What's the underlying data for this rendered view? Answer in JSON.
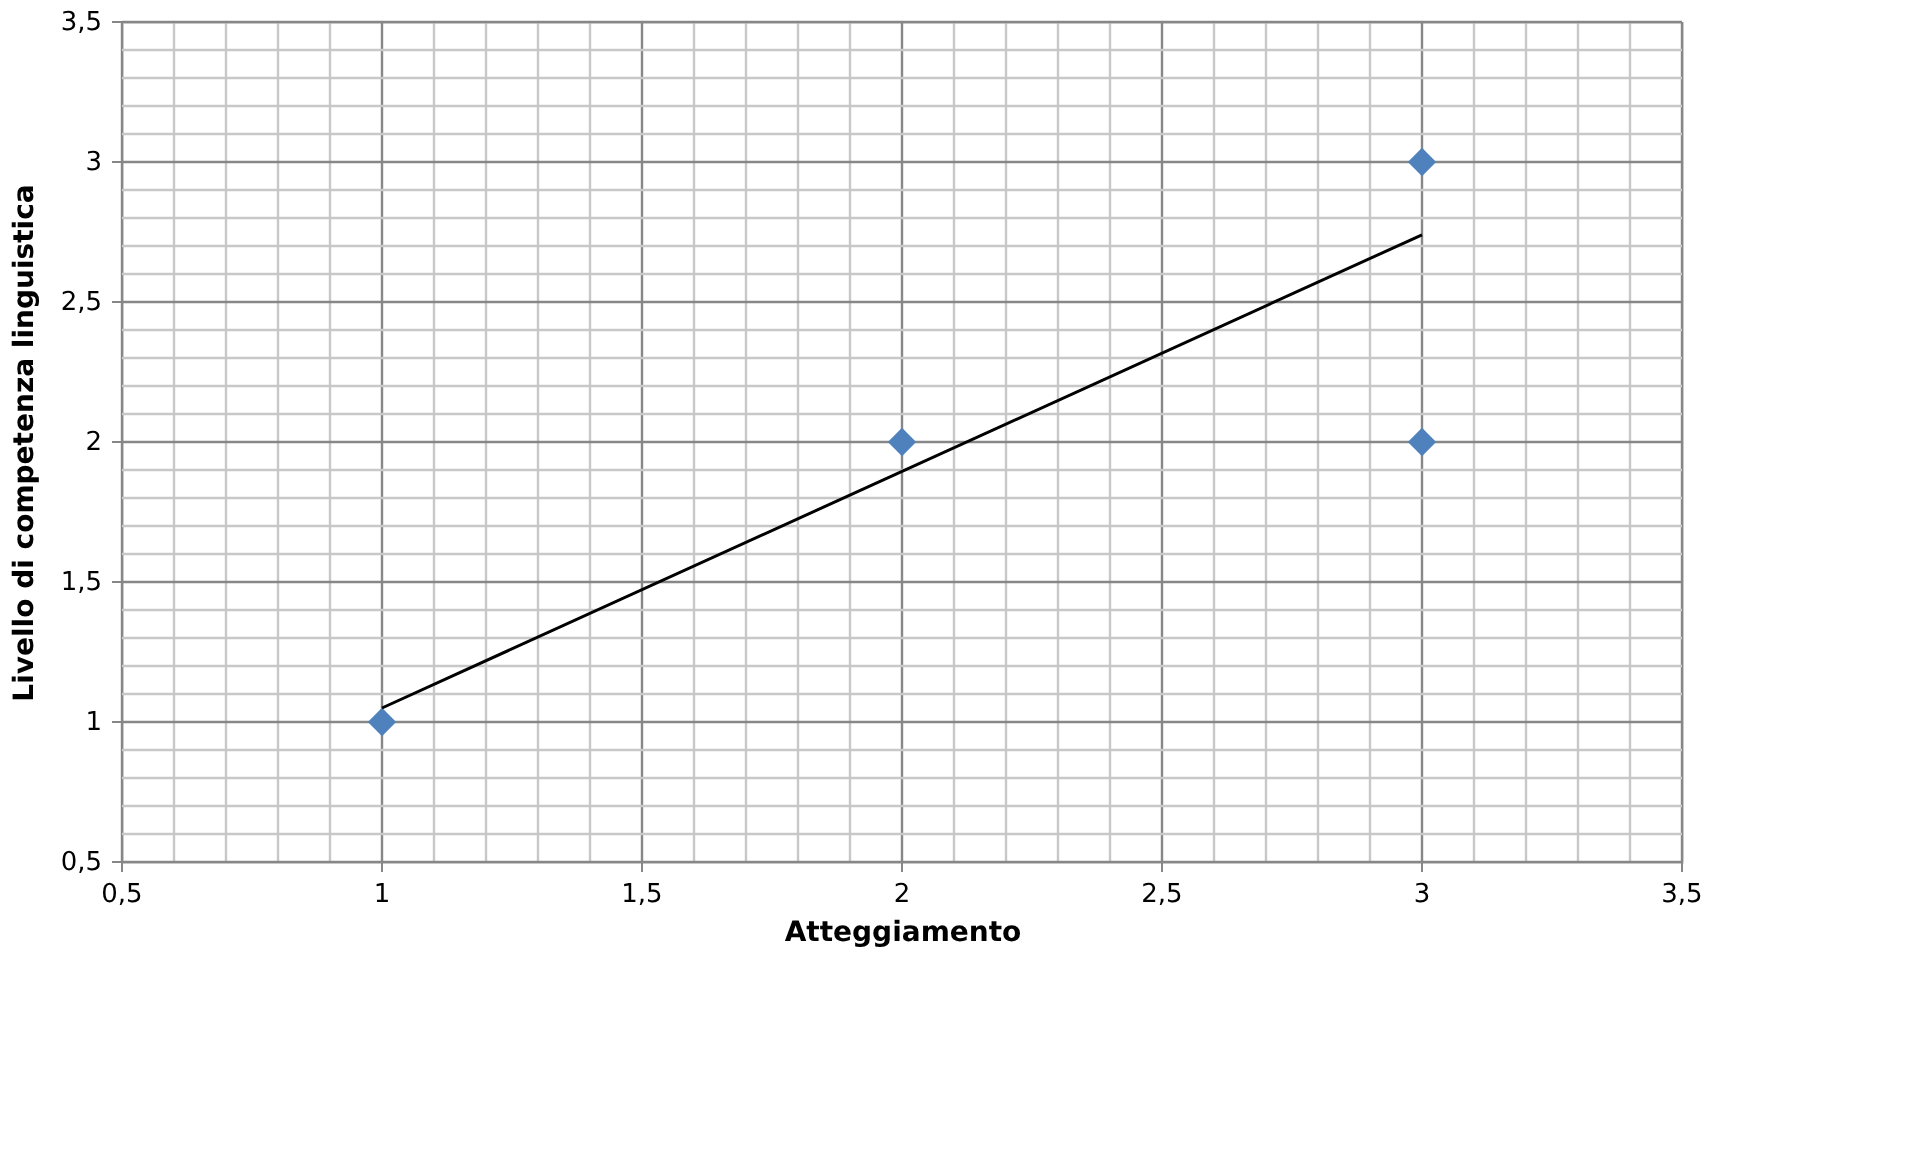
{
  "chart_data": {
    "type": "scatter",
    "xlabel": "Atteggiamento",
    "ylabel": "Livello di competenza  linguistica",
    "x": [
      1,
      2,
      3,
      3
    ],
    "series": [
      {
        "color": "#4f81bd",
        "marker": "diamond",
        "values": [
          1,
          2,
          3,
          2
        ]
      },
      {
        "type": "line",
        "color": "#000000",
        "marker": "none",
        "line_style": "solid",
        "x": [
          1,
          3
        ],
        "values": [
          1.05,
          2.74
        ]
      }
    ],
    "xlim": [
      0.5,
      3.5
    ],
    "ylim": [
      0.5,
      3.5
    ],
    "xticks": [
      {
        "value": 0.5,
        "label": "0,5"
      },
      {
        "value": 0.6,
        "label": null
      },
      {
        "value": 0.7,
        "label": null
      },
      {
        "value": 0.8,
        "label": null
      },
      {
        "value": 0.9,
        "label": null
      },
      1,
      {
        "value": 1.1,
        "label": null
      },
      {
        "value": 1.2,
        "label": null
      },
      {
        "value": 1.3,
        "label": null
      },
      {
        "value": 1.4,
        "label": null
      },
      {
        "value": 1.5,
        "label": "1,5"
      },
      {
        "value": 1.6,
        "label": null
      },
      {
        "value": 1.7,
        "label": null
      },
      {
        "value": 1.8,
        "label": null
      },
      {
        "value": 1.9,
        "label": null
      },
      2,
      {
        "value": 2.1,
        "label": null
      },
      {
        "value": 2.2,
        "label": null
      },
      {
        "value": 2.3,
        "label": null
      },
      {
        "value": 2.4,
        "label": null
      },
      {
        "value": 2.5,
        "label": "2,5"
      },
      {
        "value": 2.6,
        "label": null
      },
      {
        "value": 2.7,
        "label": null
      },
      {
        "value": 2.8,
        "label": null
      },
      {
        "value": 2.9,
        "label": null
      },
      3,
      {
        "value": 3.1,
        "label": null
      },
      {
        "value": 3.2,
        "label": null
      },
      {
        "value": 3.3,
        "label": null
      },
      {
        "value": 3.4,
        "label": null
      },
      {
        "value": 3.5,
        "label": "3,5"
      }
    ],
    "yticks": [
      {
        "value": 0.5,
        "label": "0,5"
      },
      {
        "value": 0.6,
        "label": null
      },
      {
        "value": 0.7,
        "label": null
      },
      {
        "value": 0.8,
        "label": null
      },
      {
        "value": 0.9,
        "label": null
      },
      1,
      {
        "value": 1.1,
        "label": null
      },
      {
        "value": 1.2,
        "label": null
      },
      {
        "value": 1.3,
        "label": null
      },
      {
        "value": 1.4,
        "label": null
      },
      {
        "value": 1.5,
        "label": "1,5"
      },
      {
        "value": 1.6,
        "label": null
      },
      {
        "value": 1.7,
        "label": null
      },
      {
        "value": 1.8,
        "label": null
      },
      {
        "value": 1.9,
        "label": null
      },
      2,
      {
        "value": 2.1,
        "label": null
      },
      {
        "value": 2.2,
        "label": null
      },
      {
        "value": 2.3,
        "label": null
      },
      {
        "value": 2.4,
        "label": null
      },
      {
        "value": 2.5,
        "label": "2,5"
      },
      {
        "value": 2.6,
        "label": null
      },
      {
        "value": 2.7,
        "label": null
      },
      {
        "value": 2.8,
        "label": null
      },
      {
        "value": 2.9,
        "label": null
      },
      3,
      {
        "value": 3.1,
        "label": null
      },
      {
        "value": 3.2,
        "label": null
      },
      {
        "value": 3.3,
        "label": null
      },
      {
        "value": 3.4,
        "label": null
      },
      {
        "value": 3.5,
        "label": "3,5"
      }
    ],
    "grid": true
  }
}
